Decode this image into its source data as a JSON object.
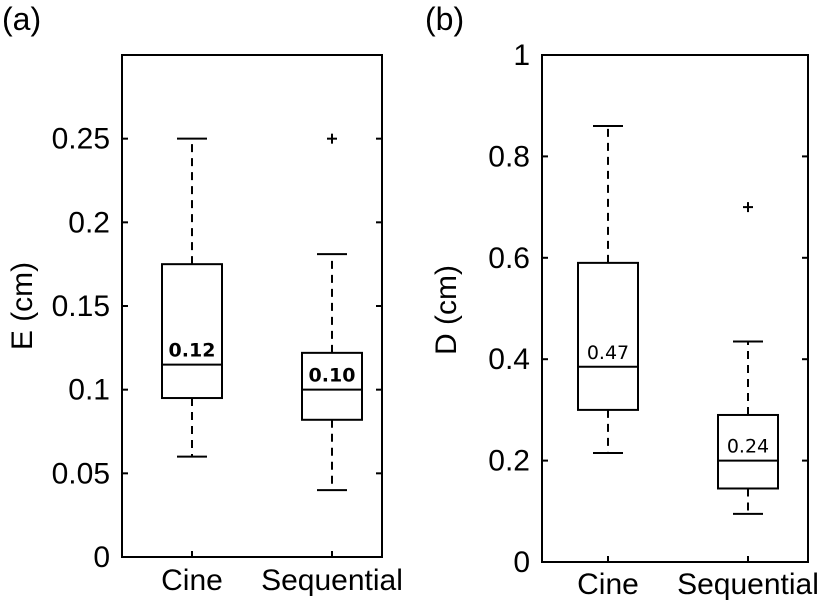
{
  "chart_data": [
    {
      "type": "box",
      "panel_label": "(a)",
      "ylabel": "E (cm)",
      "ylim": [
        0,
        0.3
      ],
      "yticks": [
        0,
        0.05,
        0.1,
        0.15,
        0.2,
        0.25
      ],
      "ytick_labels": [
        "0",
        "0.05",
        "0.1",
        "0.15",
        "0.2",
        "0.25"
      ],
      "categories": [
        "Cine",
        "Sequential"
      ],
      "boxes": [
        {
          "whisker_low": 0.06,
          "q1": 0.095,
          "median": 0.115,
          "q3": 0.175,
          "whisker_high": 0.25,
          "outliers": [],
          "annotation": "0.12"
        },
        {
          "whisker_low": 0.04,
          "q1": 0.082,
          "median": 0.1,
          "q3": 0.122,
          "whisker_high": 0.181,
          "outliers": [
            0.25
          ],
          "annotation": "0.10"
        }
      ],
      "annotation_style": "bold",
      "grid": false
    },
    {
      "type": "box",
      "panel_label": "(b)",
      "ylabel": "D (cm)",
      "ylim": [
        0,
        1
      ],
      "yticks": [
        0,
        0.2,
        0.4,
        0.6,
        0.8,
        1
      ],
      "ytick_labels": [
        "0",
        "0.2",
        "0.4",
        "0.6",
        "0.8",
        "1"
      ],
      "categories": [
        "Cine",
        "Sequential"
      ],
      "boxes": [
        {
          "whisker_low": 0.215,
          "q1": 0.3,
          "median": 0.385,
          "q3": 0.59,
          "whisker_high": 0.86,
          "outliers": [],
          "annotation": "0.47"
        },
        {
          "whisker_low": 0.095,
          "q1": 0.145,
          "median": 0.2,
          "q3": 0.29,
          "whisker_high": 0.435,
          "outliers": [
            0.7
          ],
          "annotation": "0.24"
        }
      ],
      "annotation_style": "normal",
      "grid": false
    }
  ]
}
